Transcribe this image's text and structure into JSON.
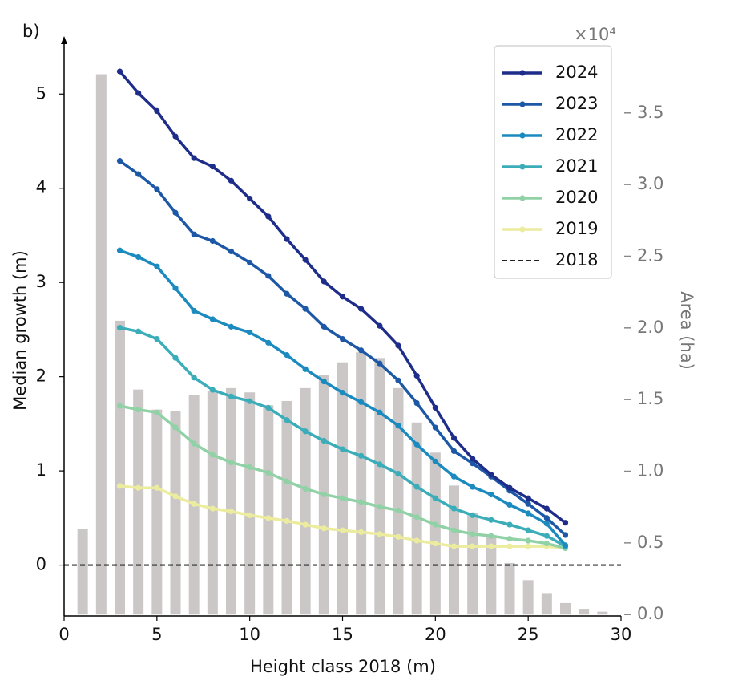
{
  "chart_data": {
    "type": "line",
    "panel_label": "b)",
    "x_label": "Height class 2018 (m)",
    "y_label": "Median growth (m)",
    "y2_label": "Area (ha)",
    "y2_offset_text": "×10⁴",
    "xlim": [
      0,
      30
    ],
    "xticks": [
      0,
      5,
      10,
      15,
      20,
      25,
      30
    ],
    "ylim": [
      -0.54,
      5.53
    ],
    "yticks": [
      0,
      1,
      2,
      3,
      4,
      5
    ],
    "y2lim": [
      -0.01,
      3.98
    ],
    "y2ticks": [
      {
        "value": 0,
        "label": "0.0"
      },
      {
        "value": 0.5,
        "label": "0.5"
      },
      {
        "value": 1,
        "label": "1.0"
      },
      {
        "value": 1.5,
        "label": "1.5"
      },
      {
        "value": 2,
        "label": "2.0"
      },
      {
        "value": 2.5,
        "label": "2.5"
      },
      {
        "value": 3,
        "label": "3.0"
      },
      {
        "value": 3.5,
        "label": "3.5"
      }
    ],
    "legend": "upper right",
    "x": [
      3,
      4,
      5,
      6,
      7,
      8,
      9,
      10,
      11,
      12,
      13,
      14,
      15,
      16,
      17,
      18,
      19,
      20,
      21,
      22,
      23,
      24,
      25,
      26,
      27
    ],
    "series": [
      {
        "name": "2024",
        "color": "#1f2d8a",
        "values": [
          5.24,
          5.01,
          4.82,
          4.55,
          4.32,
          4.23,
          4.08,
          3.89,
          3.7,
          3.46,
          3.24,
          3.01,
          2.85,
          2.72,
          2.54,
          2.33,
          2.01,
          1.67,
          1.35,
          1.13,
          0.96,
          0.82,
          0.71,
          0.6,
          0.45
        ]
      },
      {
        "name": "2023",
        "color": "#1d58a6",
        "values": [
          4.29,
          4.15,
          3.99,
          3.74,
          3.51,
          3.44,
          3.33,
          3.21,
          3.07,
          2.88,
          2.72,
          2.53,
          2.4,
          2.28,
          2.14,
          1.96,
          1.72,
          1.46,
          1.21,
          1.08,
          0.94,
          0.79,
          0.65,
          0.5,
          0.32
        ]
      },
      {
        "name": "2022",
        "color": "#1b8abf",
        "values": [
          3.34,
          3.27,
          3.17,
          2.94,
          2.7,
          2.61,
          2.53,
          2.47,
          2.36,
          2.23,
          2.08,
          1.95,
          1.83,
          1.73,
          1.62,
          1.48,
          1.28,
          1.1,
          0.94,
          0.83,
          0.75,
          0.64,
          0.55,
          0.44,
          0.21
        ]
      },
      {
        "name": "2021",
        "color": "#3badb9",
        "values": [
          2.52,
          2.48,
          2.4,
          2.2,
          1.99,
          1.86,
          1.79,
          1.74,
          1.67,
          1.54,
          1.42,
          1.32,
          1.23,
          1.16,
          1.07,
          0.97,
          0.83,
          0.71,
          0.6,
          0.53,
          0.48,
          0.43,
          0.37,
          0.31,
          0.2
        ]
      },
      {
        "name": "2020",
        "color": "#90d2a6",
        "values": [
          1.69,
          1.65,
          1.62,
          1.46,
          1.29,
          1.17,
          1.09,
          1.04,
          0.98,
          0.89,
          0.81,
          0.75,
          0.71,
          0.67,
          0.62,
          0.58,
          0.51,
          0.43,
          0.37,
          0.33,
          0.31,
          0.28,
          0.26,
          0.23,
          0.18
        ]
      },
      {
        "name": "2019",
        "color": "#ecec9e",
        "values": [
          0.84,
          0.82,
          0.82,
          0.73,
          0.65,
          0.6,
          0.57,
          0.53,
          0.5,
          0.47,
          0.43,
          0.39,
          0.37,
          0.35,
          0.33,
          0.3,
          0.26,
          0.23,
          0.2,
          0.2,
          0.2,
          0.2,
          0.2,
          0.2,
          0.18
        ]
      },
      {
        "name": "2018",
        "color": "#000000",
        "dashed": true,
        "x": [
          0,
          30
        ],
        "values": [
          0,
          0
        ]
      }
    ],
    "bars": {
      "color": "#cbc7c7",
      "axis": "y2",
      "x": [
        1,
        2,
        3,
        4,
        5,
        6,
        7,
        8,
        9,
        10,
        11,
        12,
        13,
        14,
        15,
        16,
        17,
        18,
        19,
        20,
        21,
        22,
        23,
        24,
        25,
        26,
        27,
        28,
        29
      ],
      "values": [
        0.6,
        3.77,
        2.05,
        1.57,
        1.43,
        1.42,
        1.53,
        1.56,
        1.58,
        1.55,
        1.46,
        1.49,
        1.58,
        1.67,
        1.76,
        1.83,
        1.79,
        1.58,
        1.34,
        1.13,
        0.9,
        0.71,
        0.54,
        0.36,
        0.24,
        0.15,
        0.08,
        0.04,
        0.02
      ]
    }
  }
}
